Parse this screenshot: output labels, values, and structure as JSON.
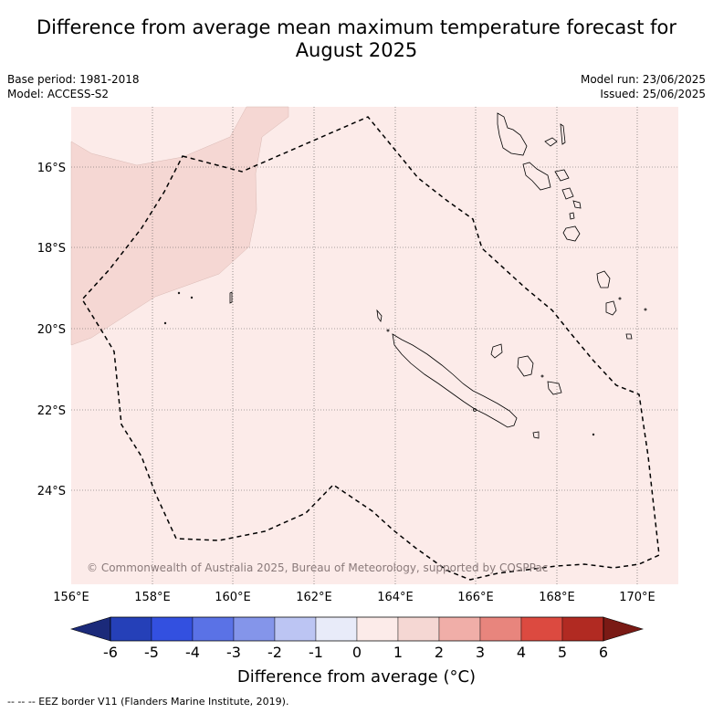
{
  "title_line1": "Difference from average mean maximum temperature forecast for",
  "title_line2": "August 2025",
  "meta_left": {
    "base_period": "Base period: 1981-2018",
    "model": "Model: ACCESS-S2"
  },
  "meta_right": {
    "model_run": "Model run: 23/06/2025",
    "issued": "Issued: 25/06/2025"
  },
  "map": {
    "lon_labels": [
      "156°E",
      "158°E",
      "160°E",
      "162°E",
      "164°E",
      "166°E",
      "168°E",
      "170°E"
    ],
    "lat_labels": [
      "16°S",
      "18°S",
      "20°S",
      "22°S",
      "24°S"
    ],
    "copyright": "© Commonwealth of Australia 2025, Bureau of Meteorology, supported by COSPPac",
    "colors": {
      "anomaly_0_1": "#fcebe9",
      "anomaly_1_2": "#f5d7d3",
      "land_outline": "#000000",
      "eez_border": "#000000"
    }
  },
  "colorbar": {
    "ticks": [
      "-6",
      "-5",
      "-4",
      "-3",
      "-2",
      "-1",
      "0",
      "1",
      "2",
      "3",
      "4",
      "5",
      "6"
    ],
    "colors": [
      "#1b2a7a",
      "#2540b8",
      "#3350e0",
      "#5a72e6",
      "#8495ea",
      "#bcc5f3",
      "#e8ebf9",
      "#fcebe9",
      "#f5d7d3",
      "#f0aea8",
      "#e8857d",
      "#dc4a40",
      "#b12a22",
      "#7a1a15"
    ],
    "label": "Difference from average (°C)"
  },
  "footnote": "-- -- -- EEZ border V11 (Flanders Marine Institute, 2019)."
}
